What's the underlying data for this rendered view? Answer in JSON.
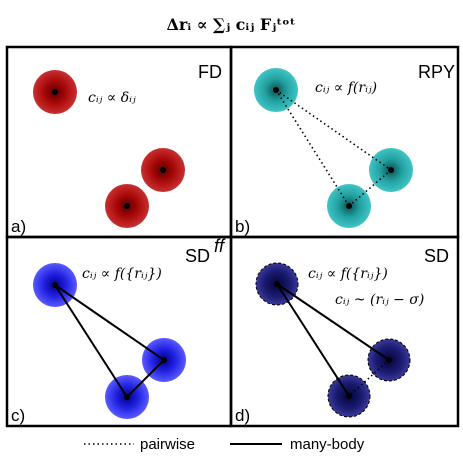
{
  "title": "Δrᵢ ∝ ∑ⱼ cᵢⱼ Fⱼᵗᵒᵗ",
  "panels": [
    {
      "label": "a)",
      "tag": "FD",
      "formulas": [
        "cᵢⱼ ∝ δᵢⱼ"
      ]
    },
    {
      "label": "b)",
      "tag": "RPY",
      "formulas": [
        "cᵢⱼ ∝ f(rᵢⱼ)"
      ]
    },
    {
      "label": "c)",
      "tag": "SD",
      "tag_superscript": "ff",
      "formulas": [
        "cᵢⱼ ∝ f({rᵢⱼ})"
      ]
    },
    {
      "label": "d)",
      "tag": "SD",
      "formulas": [
        "cᵢⱼ ∝ f({rᵢⱼ})",
        "cᵢⱼ ~ (rᵢⱼ − σ)"
      ]
    }
  ],
  "legend": [
    "pairwise",
    "many-body"
  ]
}
